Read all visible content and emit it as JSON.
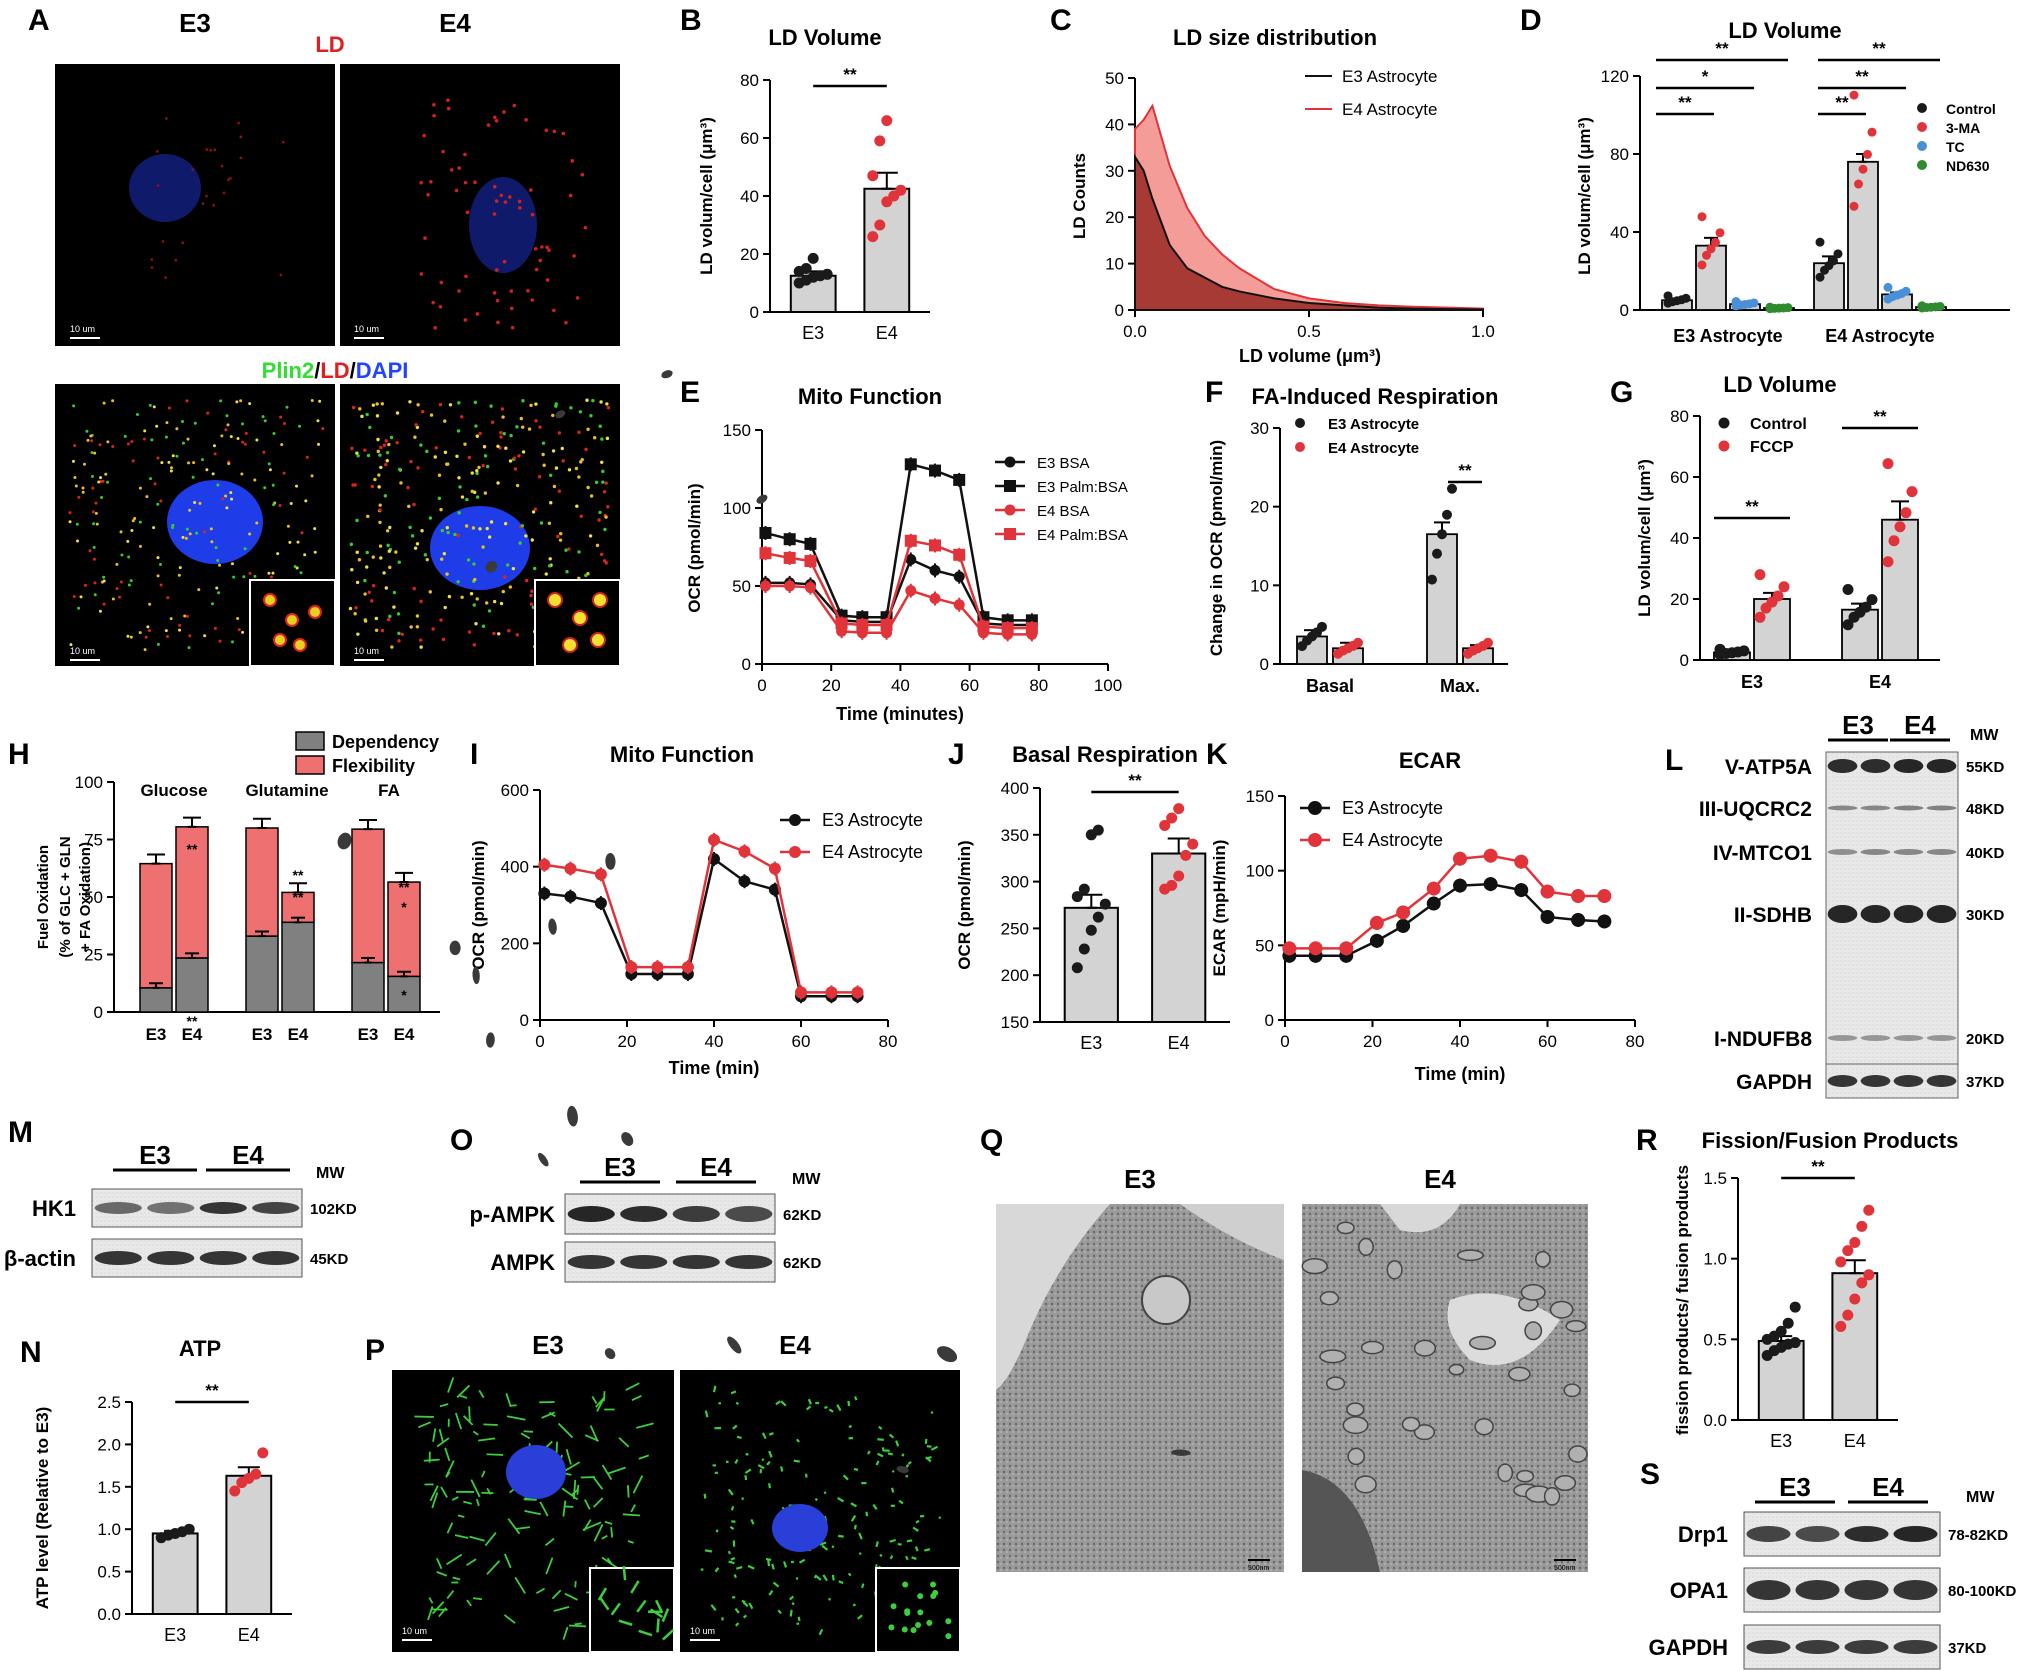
{
  "colors": {
    "e3": "#1a1a1a",
    "e4": "#e0343a",
    "e4fill": "#f08080",
    "bar": "#d3d3d3",
    "blue": "#4a90d9",
    "green": "#2e8b2e",
    "ld": "#e02020",
    "plin": "#33ee33",
    "dapi": "#2244ff"
  },
  "panels": {
    "A": {
      "letter": "A",
      "col1": "E3",
      "col2": "E4",
      "top_label": "LD",
      "bottom_label": {
        "p1": "Plin2",
        "s1": "/",
        "p2": "LD",
        "s2": "/",
        "p3": "DAPI"
      },
      "scale": "10 um"
    },
    "L": {
      "letter": "L",
      "g1": "E3",
      "g2": "E4",
      "mw": "MW",
      "bands": [
        {
          "label": "V-ATP5A",
          "kd": "55KD"
        },
        {
          "label": "III-UQCRC2",
          "kd": "48KD"
        },
        {
          "label": "IV-MTCO1",
          "kd": "40KD"
        },
        {
          "label": "II-SDHB",
          "kd": "30KD"
        },
        {
          "label": "I-NDUFB8",
          "kd": "20KD"
        },
        {
          "label": "GAPDH",
          "kd": "37KD"
        }
      ]
    },
    "M": {
      "letter": "M",
      "g1": "E3",
      "g2": "E4",
      "mw": "MW",
      "bands": [
        {
          "label": "HK1",
          "kd": "102KD"
        },
        {
          "label": "β-actin",
          "kd": "45KD"
        }
      ]
    },
    "O": {
      "letter": "O",
      "g1": "E3",
      "g2": "E4",
      "mw": "MW",
      "bands": [
        {
          "label": "p-AMPK",
          "kd": "62KD"
        },
        {
          "label": "AMPK",
          "kd": "62KD"
        }
      ]
    },
    "S": {
      "letter": "S",
      "g1": "E3",
      "g2": "E4",
      "mw": "MW",
      "bands": [
        {
          "label": "Drp1",
          "kd": "78-82KD"
        },
        {
          "label": "OPA1",
          "kd": "80-100KD"
        },
        {
          "label": "GAPDH",
          "kd": "37KD"
        }
      ]
    },
    "P": {
      "letter": "P",
      "col1": "E3",
      "col2": "E4",
      "scale": "10 um"
    },
    "Q": {
      "letter": "Q",
      "col1": "E3",
      "col2": "E4",
      "scale": "500nm"
    }
  },
  "chart_data": [
    {
      "id": "B",
      "type": "bar",
      "title": "LD Volume",
      "ylabel": "LD volum/cell (μm³)",
      "categories": [
        "E3",
        "E4"
      ],
      "values": [
        12.5,
        42.5
      ],
      "sem": [
        1.5,
        5.5
      ],
      "ylim": [
        0,
        80
      ],
      "yticks": [
        0,
        20,
        40,
        60,
        80
      ],
      "points": [
        [
          10,
          11,
          12,
          12.5,
          13,
          14,
          15,
          18.5
        ],
        [
          26,
          30,
          38,
          40,
          42,
          47,
          59,
          66
        ]
      ],
      "sig": "**"
    },
    {
      "id": "C",
      "type": "area",
      "title": "LD size distribution",
      "xlabel": "LD volume (μm³)",
      "ylabel": "LD Counts",
      "xlim": [
        0,
        1.0
      ],
      "ylim": [
        0,
        50
      ],
      "xticks": [
        0.0,
        0.5,
        1.0
      ],
      "yticks": [
        0,
        10,
        20,
        30,
        40,
        50
      ],
      "series": [
        {
          "name": "E3 Astrocyte",
          "x": [
            0,
            0.025,
            0.05,
            0.1,
            0.15,
            0.2,
            0.25,
            0.3,
            0.4,
            0.5,
            0.6,
            0.7,
            0.8,
            0.9,
            1.0
          ],
          "y": [
            33,
            30,
            24,
            14,
            9,
            7,
            5,
            4,
            2.5,
            1.5,
            1,
            0.5,
            0.3,
            0.2,
            0.1
          ]
        },
        {
          "name": "E4 Astrocyte",
          "x": [
            0,
            0.025,
            0.05,
            0.1,
            0.15,
            0.2,
            0.25,
            0.3,
            0.4,
            0.5,
            0.6,
            0.7,
            0.8,
            0.9,
            1.0
          ],
          "y": [
            39,
            41,
            44,
            31,
            22,
            16,
            12,
            9,
            4.5,
            2.5,
            1.5,
            1,
            0.7,
            0.5,
            0.3
          ]
        }
      ]
    },
    {
      "id": "D",
      "type": "bar",
      "title": "LD Volume",
      "ylabel": "LD volum/cell (μm³)",
      "groups": [
        "E3 Astrocyte",
        "E4 Astrocyte"
      ],
      "ylim": [
        0,
        120
      ],
      "yticks": [
        0,
        40,
        80,
        120
      ],
      "series": [
        {
          "name": "Control",
          "values": [
            5,
            24
          ],
          "sem": [
            0.8,
            3.5
          ]
        },
        {
          "name": "3-MA",
          "values": [
            33,
            76
          ],
          "sem": [
            4,
            4
          ]
        },
        {
          "name": "TC",
          "values": [
            3,
            8
          ],
          "sem": [
            0.5,
            1
          ]
        },
        {
          "name": "ND630",
          "values": [
            1,
            1.5
          ],
          "sem": [
            0.3,
            0.3
          ]
        }
      ],
      "sig": [
        "**",
        "*",
        "**",
        "**",
        "**",
        "**"
      ]
    },
    {
      "id": "E",
      "type": "line",
      "title": "Mito Function",
      "xlabel": "Time (minutes)",
      "ylabel": "OCR (pmol/min)",
      "xlim": [
        0,
        100
      ],
      "ylim": [
        0,
        150
      ],
      "xticks": [
        0,
        20,
        40,
        60,
        80,
        100
      ],
      "yticks": [
        0,
        50,
        100,
        150
      ],
      "x": [
        1,
        8,
        14,
        23,
        29,
        36,
        43,
        50,
        57,
        64,
        71,
        78
      ],
      "series": [
        {
          "name": "E3 BSA",
          "values": [
            52,
            52,
            51,
            28,
            27,
            27,
            67,
            60,
            56,
            26,
            25,
            25
          ]
        },
        {
          "name": "E3 Palm:BSA",
          "values": [
            84,
            80,
            77,
            31,
            30,
            30,
            128,
            124,
            118,
            30,
            28,
            28
          ]
        },
        {
          "name": "E4 BSA",
          "values": [
            50,
            50,
            49,
            21,
            20,
            20,
            47,
            42,
            38,
            20,
            19,
            19
          ]
        },
        {
          "name": "E4 Palm:BSA",
          "values": [
            71,
            68,
            66,
            26,
            25,
            25,
            79,
            76,
            70,
            24,
            23,
            23
          ]
        }
      ]
    },
    {
      "id": "F",
      "type": "bar",
      "title": "FA-Induced Respiration",
      "ylabel": "Change in OCR (pmol/min)",
      "categories": [
        "Basal",
        "Max."
      ],
      "ylim": [
        0,
        30
      ],
      "yticks": [
        0,
        10,
        20,
        30
      ],
      "series": [
        {
          "name": "E3 Astrocyte",
          "values": [
            3.5,
            16.5
          ],
          "sem": [
            0.8,
            1.5
          ]
        },
        {
          "name": "E4 Astrocyte",
          "values": [
            2,
            2
          ],
          "sem": [
            0.7,
            0.4
          ]
        }
      ],
      "sig": "**"
    },
    {
      "id": "G",
      "type": "bar",
      "title": "LD Volume",
      "ylabel": "LD volum/cell (μm³)",
      "categories": [
        "E3",
        "E4"
      ],
      "ylim": [
        0,
        80
      ],
      "yticks": [
        0,
        20,
        40,
        60,
        80
      ],
      "series": [
        {
          "name": "Control",
          "values": [
            2.5,
            16.5
          ],
          "sem": [
            0.5,
            2
          ]
        },
        {
          "name": "FCCP",
          "values": [
            20,
            46
          ],
          "sem": [
            2,
            6
          ]
        }
      ],
      "sig": [
        "**",
        "**"
      ]
    },
    {
      "id": "H",
      "type": "bar",
      "stacked": true,
      "ylabel": "Fuel Oxidation (% of GLC + GLN + FA Oxidation)",
      "groups": [
        "Glucose",
        "Glutamine",
        "FA"
      ],
      "categories": [
        "E3",
        "E4",
        "E3",
        "E4",
        "E3",
        "E4"
      ],
      "ylim": [
        0,
        100
      ],
      "yticks": [
        0,
        25,
        50,
        75,
        100
      ],
      "series": [
        {
          "name": "Dependency",
          "values": [
            10.5,
            23.5,
            33,
            39,
            21.5,
            15.5
          ]
        },
        {
          "name": "Flexibility",
          "values": [
            54,
            57,
            47,
            13,
            58,
            41
          ]
        }
      ]
    },
    {
      "id": "I",
      "type": "line",
      "title": "Mito Function",
      "xlabel": "Time (min)",
      "ylabel": "OCR (pmol/min)",
      "xlim": [
        0,
        80
      ],
      "ylim": [
        0,
        600
      ],
      "xticks": [
        0,
        20,
        40,
        60,
        80
      ],
      "yticks": [
        0,
        200,
        400,
        600
      ],
      "x": [
        1,
        7,
        14,
        21,
        27,
        34,
        40,
        47,
        54,
        60,
        67,
        73
      ],
      "series": [
        {
          "name": "E3 Astrocyte",
          "values": [
            330,
            322,
            305,
            120,
            120,
            120,
            420,
            362,
            340,
            62,
            62,
            62
          ]
        },
        {
          "name": "E4 Astrocyte",
          "values": [
            405,
            395,
            380,
            138,
            138,
            138,
            470,
            440,
            395,
            72,
            72,
            72
          ]
        }
      ]
    },
    {
      "id": "J",
      "type": "bar",
      "title": "Basal Respiration",
      "ylabel": "OCR (pmol/min)",
      "categories": [
        "E3",
        "E4"
      ],
      "values": [
        272,
        330
      ],
      "sem": [
        14,
        16
      ],
      "ylim": [
        150,
        400
      ],
      "yticks": [
        150,
        200,
        250,
        300,
        350,
        400
      ],
      "points": [
        [
          208,
          228,
          248,
          262,
          276,
          284,
          292,
          350,
          355
        ],
        [
          292,
          296,
          306,
          328,
          340,
          360,
          368,
          378
        ]
      ],
      "sig": "**"
    },
    {
      "id": "K",
      "type": "line",
      "title": "ECAR",
      "xlabel": "Time (min)",
      "ylabel": "ECAR (mpH/min)",
      "xlim": [
        0,
        80
      ],
      "ylim": [
        0,
        150
      ],
      "xticks": [
        0,
        20,
        40,
        60,
        80
      ],
      "yticks": [
        0,
        50,
        100,
        150
      ],
      "x": [
        1,
        7,
        14,
        21,
        27,
        34,
        40,
        47,
        54,
        60,
        67,
        73
      ],
      "series": [
        {
          "name": "E3 Astrocyte",
          "values": [
            43,
            43,
            43,
            53,
            63,
            78,
            90,
            91,
            87,
            69,
            67,
            66
          ]
        },
        {
          "name": "E4 Astrocyte",
          "values": [
            48,
            48,
            48,
            65,
            72,
            88,
            108,
            110,
            106,
            86,
            83,
            83
          ]
        }
      ]
    },
    {
      "id": "N",
      "type": "bar",
      "title": "ATP",
      "ylabel": "ATP level (Relative to E3)",
      "categories": [
        "E3",
        "E4"
      ],
      "values": [
        0.95,
        1.63
      ],
      "sem": [
        0.03,
        0.1
      ],
      "ylim": [
        0,
        2.5
      ],
      "yticks": [
        0.0,
        0.5,
        1.0,
        1.5,
        2.0,
        2.5
      ],
      "points": [
        [
          0.9,
          0.93,
          0.95,
          0.97,
          1.0
        ],
        [
          1.45,
          1.55,
          1.6,
          1.65,
          1.9
        ]
      ],
      "sig": "**"
    },
    {
      "id": "R",
      "type": "bar",
      "title": "Fission/Fusion Products",
      "ylabel": "fission products/ fusion products",
      "categories": [
        "E3",
        "E4"
      ],
      "values": [
        0.49,
        0.91
      ],
      "sem": [
        0.03,
        0.08
      ],
      "ylim": [
        0,
        1.5
      ],
      "yticks": [
        0.0,
        0.5,
        1.0,
        1.5
      ],
      "points": [
        [
          0.4,
          0.43,
          0.45,
          0.47,
          0.48,
          0.5,
          0.52,
          0.55,
          0.6,
          0.7
        ],
        [
          0.58,
          0.65,
          0.75,
          0.85,
          0.9,
          0.98,
          1.05,
          1.1,
          1.2,
          1.3
        ]
      ],
      "sig": "**"
    }
  ]
}
